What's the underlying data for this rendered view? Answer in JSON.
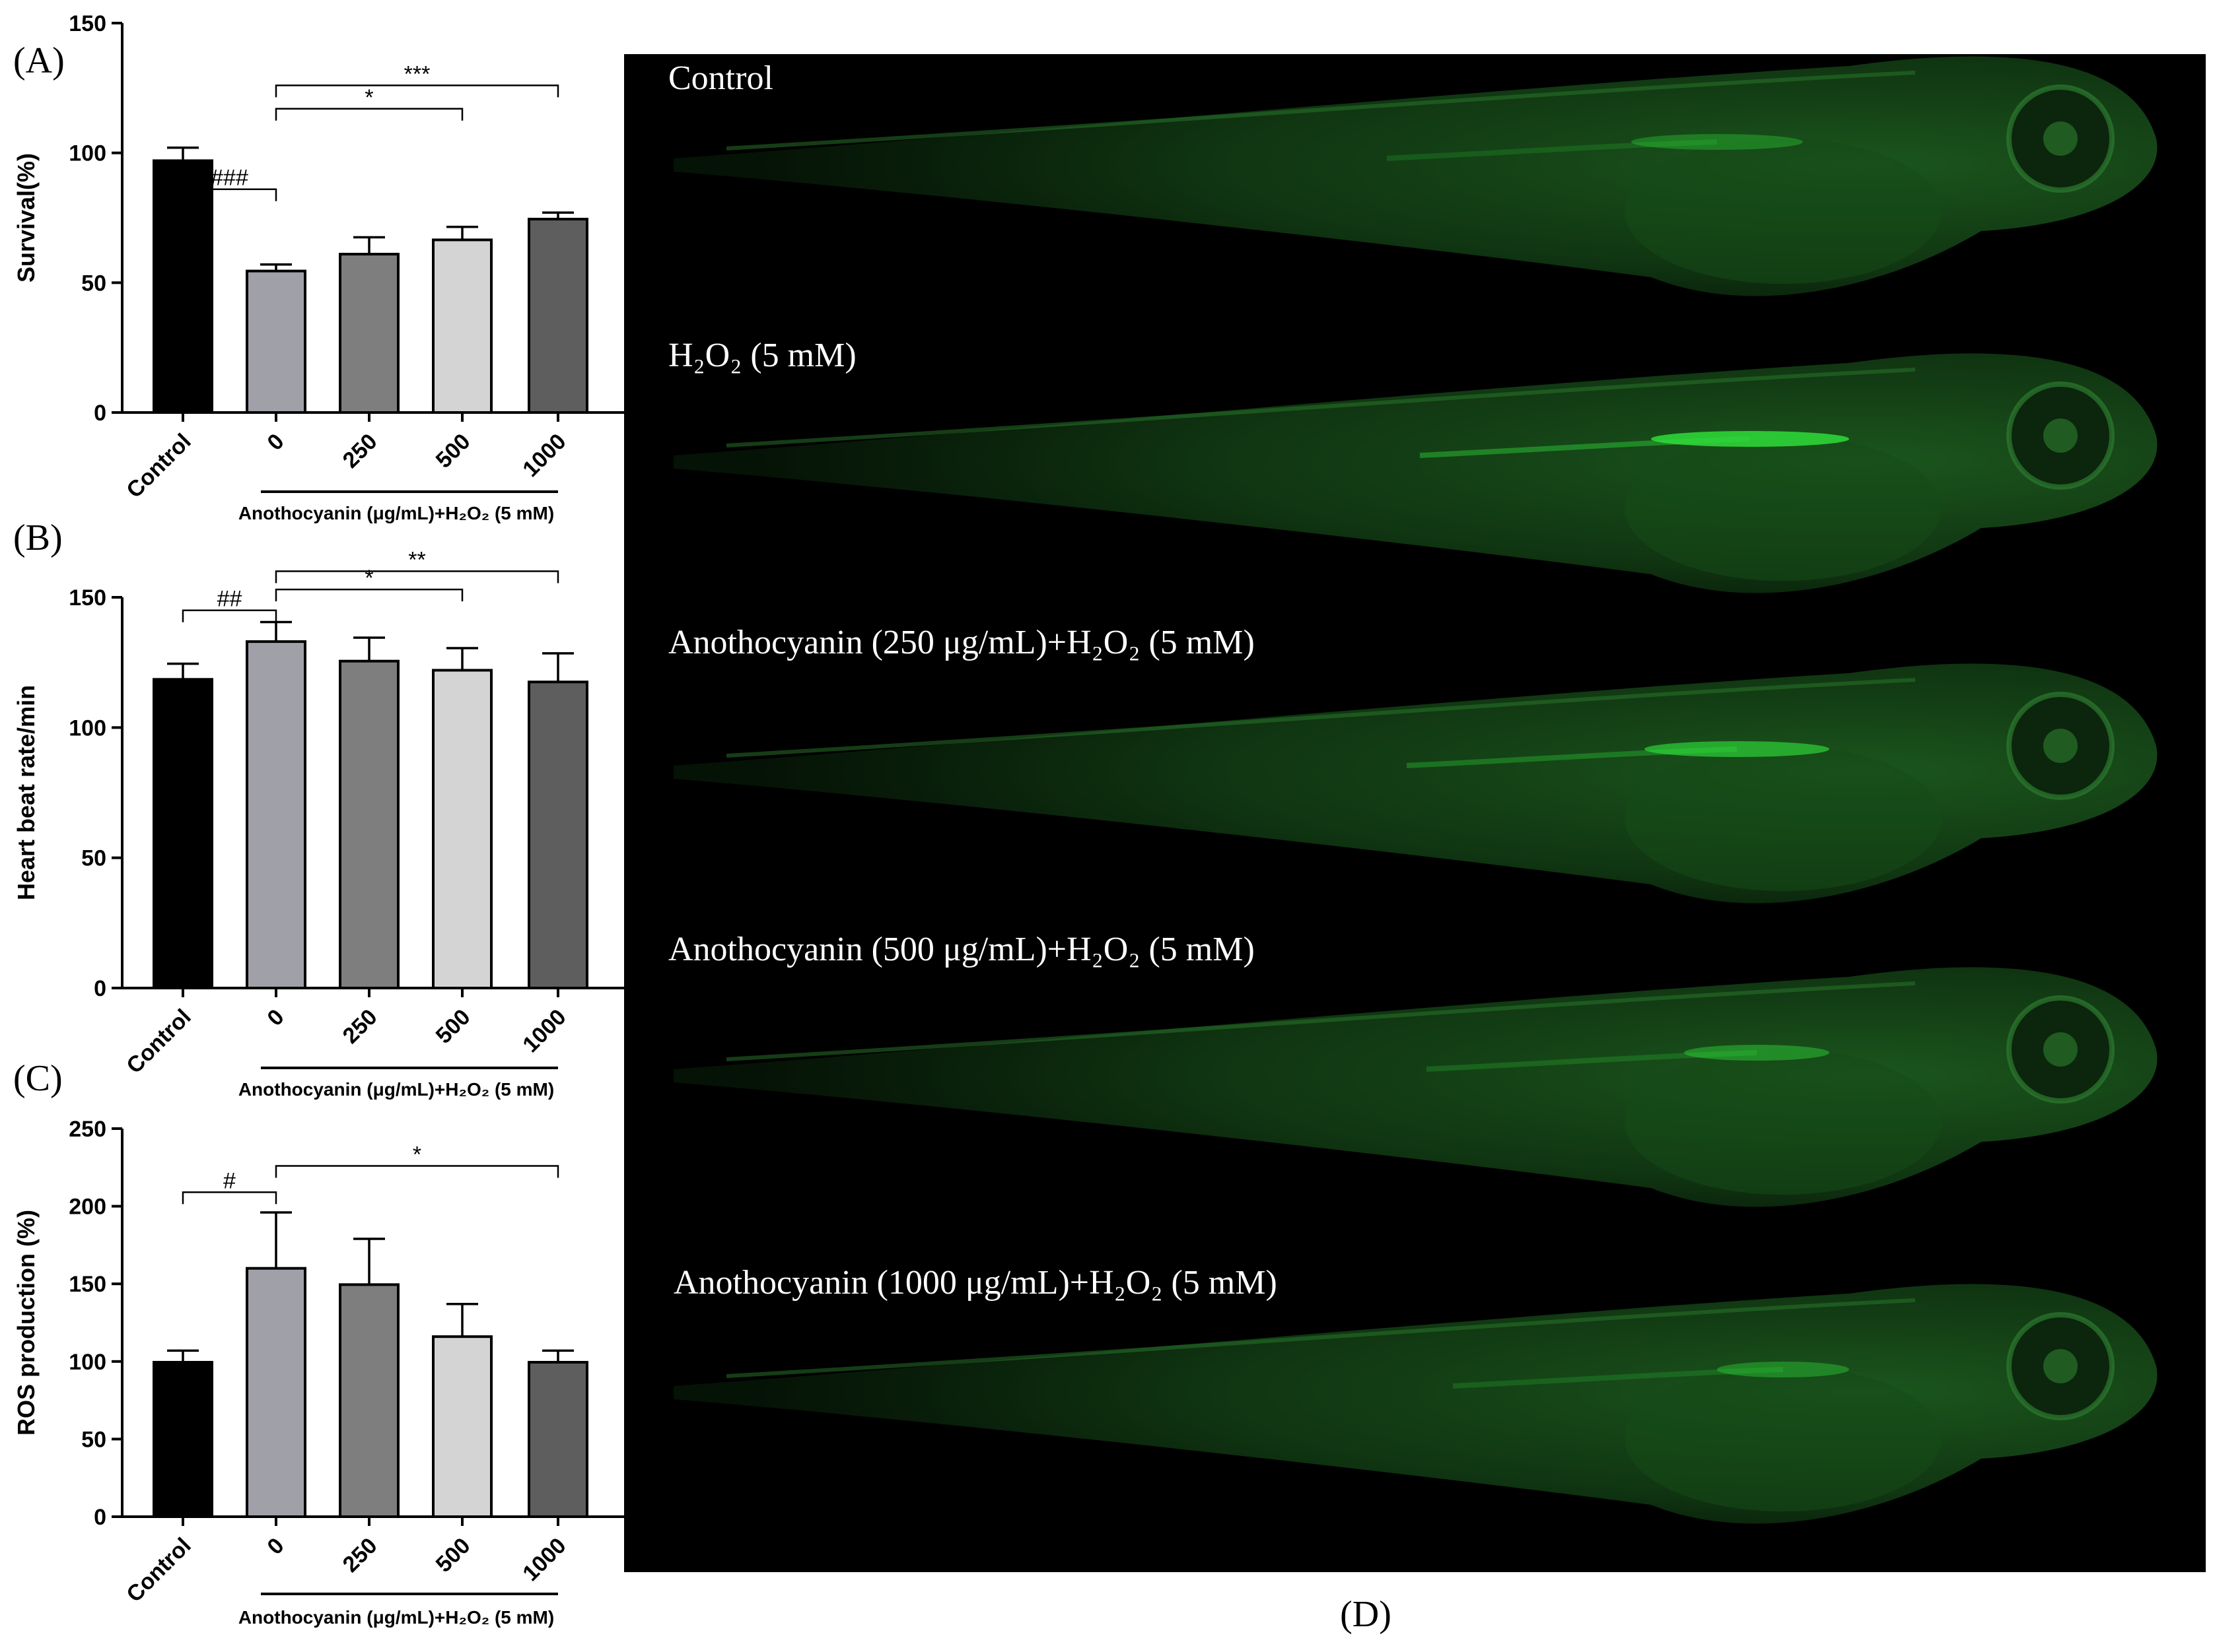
{
  "figure": {
    "panel_d_label": "(D)",
    "micrograph": {
      "labels": [
        "Control",
        "H₂O₂ (5 mM)",
        "Anothocyanin (250 μg/mL)+H₂O₂ (5 mM)",
        "Anothocyanin (500 μg/mL)+H₂O₂ (5 mM)",
        "Anothocyanin (1000 μg/mL)+H₂O₂ (5 mM)"
      ],
      "fluorescence_color": "#2fdc3a",
      "background_color": "#000000"
    }
  },
  "chart_data": [
    {
      "panel": "(A)",
      "type": "bar",
      "categories": [
        "Control",
        "0",
        "250",
        "500",
        "1000"
      ],
      "values": [
        97,
        54.5,
        61,
        66.5,
        74.5
      ],
      "errors": [
        5,
        2.5,
        6.5,
        5,
        2.5
      ],
      "bar_colors": [
        "#000000",
        "#a0a0a8",
        "#7e7e7e",
        "#d4d4d4",
        "#5e5e5e"
      ],
      "ylabel": "Survival(%)",
      "ylim": [
        0,
        150
      ],
      "yticks": [
        0,
        50,
        100,
        150
      ],
      "group_label": "Anothocyanin (μg/mL)+H₂O₂ (5 mM)",
      "significance": [
        {
          "from": 0,
          "to": 1,
          "label": "###",
          "level": 86
        },
        {
          "from": 1,
          "to": 3,
          "label": "*",
          "level": 117
        },
        {
          "from": 1,
          "to": 4,
          "label": "***",
          "level": 126
        }
      ]
    },
    {
      "panel": "(B)",
      "type": "bar",
      "categories": [
        "Control",
        "0",
        "250",
        "500",
        "1000"
      ],
      "values": [
        118.5,
        133,
        125.5,
        122,
        117.5
      ],
      "errors": [
        6,
        7.5,
        9,
        8.5,
        11
      ],
      "bar_colors": [
        "#000000",
        "#a0a0a8",
        "#7e7e7e",
        "#d4d4d4",
        "#5e5e5e"
      ],
      "ylabel": "Heart beat rate/min",
      "ylim": [
        0,
        150
      ],
      "yticks": [
        0,
        50,
        100,
        150
      ],
      "group_label": "Anothocyanin (μg/mL)+H₂O₂ (5 mM)",
      "significance": [
        {
          "from": 0,
          "to": 1,
          "label": "##",
          "level": 145
        },
        {
          "from": 1,
          "to": 3,
          "label": "*",
          "level": 153
        },
        {
          "from": 1,
          "to": 4,
          "label": "**",
          "level": 160
        }
      ]
    },
    {
      "panel": "(C)",
      "type": "bar",
      "categories": [
        "Control",
        "0",
        "250",
        "500",
        "1000"
      ],
      "values": [
        99.5,
        160,
        149.5,
        116,
        99.5
      ],
      "errors": [
        7.5,
        36,
        29.5,
        21,
        7.5
      ],
      "bar_colors": [
        "#000000",
        "#a0a0a8",
        "#7e7e7e",
        "#d4d4d4",
        "#5e5e5e"
      ],
      "ylabel": "ROS production (%)",
      "ylim": [
        0,
        250
      ],
      "yticks": [
        0,
        50,
        100,
        150,
        200,
        250
      ],
      "group_label": "Anothocyanin (μg/mL)+H₂O₂ (5 mM)",
      "significance": [
        {
          "from": 0,
          "to": 1,
          "label": "#",
          "level": 209
        },
        {
          "from": 1,
          "to": 4,
          "label": "*",
          "level": 226
        }
      ]
    }
  ]
}
